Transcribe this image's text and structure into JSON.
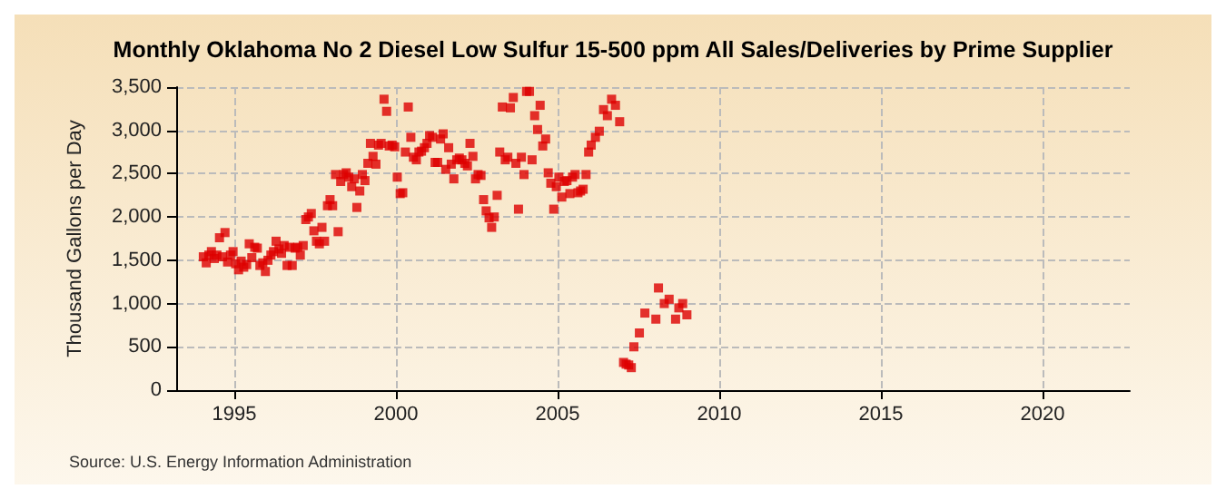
{
  "chart_data": {
    "type": "scatter",
    "title": "Monthly Oklahoma No 2 Diesel Low Sulfur 15-500 ppm All Sales/Deliveries by Prime Supplier",
    "ylabel": "Thousand Gallons per Day",
    "annotations": [
      "Source: U.S. Energy Information Administration"
    ],
    "xlim": [
      1993.2,
      2022.7
    ],
    "xticks": [
      {
        "value": 1995,
        "label": "1995"
      },
      {
        "value": 2000,
        "label": "2000"
      },
      {
        "value": 2005,
        "label": "2005"
      },
      {
        "value": 2010,
        "label": "2010"
      },
      {
        "value": 2015,
        "label": "2015"
      },
      {
        "value": 2020,
        "label": "2020"
      }
    ],
    "ylim": [
      0,
      3500
    ],
    "yticks": [
      0,
      500,
      {
        "value": 1000,
        "label": "1,000"
      },
      {
        "value": 1500,
        "label": "1,500"
      },
      {
        "value": 2000,
        "label": "2,000"
      },
      {
        "value": 2500,
        "label": "2,500"
      },
      {
        "value": 3000,
        "label": "3,000"
      },
      {
        "value": 3500,
        "label": "3,500"
      }
    ],
    "grid": true,
    "marker": "square",
    "series": [
      {
        "color": "#dd0000",
        "x": [
          1994.04,
          1994.13,
          1994.21,
          1994.29,
          1994.38,
          1994.46,
          1994.54,
          1994.63,
          1994.71,
          1994.79,
          1994.88,
          1994.96,
          1995.04,
          1995.13,
          1995.21,
          1995.29,
          1995.38,
          1995.46,
          1995.54,
          1995.63,
          1995.71,
          1995.79,
          1995.88,
          1995.96,
          1996.04,
          1996.13,
          1996.21,
          1996.29,
          1996.38,
          1996.46,
          1996.54,
          1996.63,
          1996.71,
          1996.79,
          1996.88,
          1996.96,
          1997.04,
          1997.13,
          1997.21,
          1997.29,
          1997.38,
          1997.46,
          1997.54,
          1997.63,
          1997.71,
          1997.79,
          1997.88,
          1997.96,
          1998.04,
          1998.13,
          1998.21,
          1998.29,
          1998.38,
          1998.46,
          1998.54,
          1998.63,
          1998.71,
          1998.79,
          1998.88,
          1998.96,
          1999.04,
          1999.13,
          1999.21,
          1999.29,
          1999.38,
          1999.46,
          1999.54,
          1999.63,
          1999.71,
          1999.79,
          1999.88,
          1999.96,
          2000.04,
          2000.13,
          2000.21,
          2000.29,
          2000.38,
          2000.46,
          2000.54,
          2000.63,
          2000.71,
          2000.79,
          2000.88,
          2000.96,
          2001.04,
          2001.13,
          2001.21,
          2001.29,
          2001.38,
          2001.46,
          2001.54,
          2001.63,
          2001.71,
          2001.79,
          2001.88,
          2001.96,
          2002.04,
          2002.13,
          2002.21,
          2002.29,
          2002.38,
          2002.46,
          2002.54,
          2002.63,
          2002.71,
          2002.79,
          2002.88,
          2002.96,
          2003.04,
          2003.13,
          2003.21,
          2003.29,
          2003.38,
          2003.46,
          2003.54,
          2003.63,
          2003.71,
          2003.79,
          2003.88,
          2003.96,
          2004.04,
          2004.13,
          2004.21,
          2004.29,
          2004.38,
          2004.46,
          2004.54,
          2004.63,
          2004.71,
          2004.79,
          2004.88,
          2004.96,
          2005.04,
          2005.13,
          2005.21,
          2005.29,
          2005.38,
          2005.46,
          2005.54,
          2005.63,
          2005.71,
          2005.79,
          2005.88,
          2005.96,
          2006.04,
          2006.17,
          2006.29,
          2006.42,
          2006.54,
          2006.67,
          2006.79,
          2006.92,
          2007.04,
          2007.12,
          2007.2,
          2007.28,
          2007.36,
          2007.53,
          2007.7,
          2008.04,
          2008.12,
          2008.3,
          2008.45,
          2008.65,
          2008.75,
          2008.87,
          2009.0
        ],
        "values": [
          1540,
          1470,
          1560,
          1600,
          1520,
          1560,
          1760,
          1540,
          1820,
          1480,
          1560,
          1600,
          1460,
          1390,
          1490,
          1420,
          1450,
          1690,
          1530,
          1650,
          1640,
          1440,
          1470,
          1370,
          1500,
          1560,
          1600,
          1720,
          1630,
          1580,
          1670,
          1440,
          1650,
          1440,
          1640,
          1650,
          1560,
          1670,
          1970,
          2000,
          2040,
          1840,
          1720,
          1690,
          1880,
          1720,
          2130,
          2200,
          2130,
          2490,
          1830,
          2410,
          2490,
          2510,
          2460,
          2350,
          2440,
          2110,
          2300,
          2490,
          2420,
          2620,
          2850,
          2700,
          2610,
          2830,
          2850,
          3360,
          3220,
          2820,
          2830,
          2810,
          2460,
          2270,
          2280,
          2750,
          3270,
          2920,
          2690,
          2660,
          2750,
          2760,
          2800,
          2850,
          2940,
          2920,
          2630,
          2630,
          2900,
          2960,
          2550,
          2800,
          2610,
          2440,
          2660,
          2680,
          2660,
          2620,
          2590,
          2850,
          2700,
          2440,
          2490,
          2480,
          2200,
          2070,
          1990,
          1880,
          2000,
          2250,
          2750,
          3270,
          2660,
          2690,
          3260,
          3380,
          2620,
          2090,
          2690,
          2490,
          3450,
          3450,
          2660,
          3170,
          3010,
          3290,
          2820,
          2900,
          2510,
          2390,
          2090,
          2350,
          2460,
          2230,
          2410,
          2420,
          2270,
          2460,
          2490,
          2280,
          2300,
          2320,
          2490,
          2750,
          2830,
          2920,
          2990,
          3240,
          3170,
          3360,
          3290,
          3100,
          320,
          300,
          290,
          260,
          500,
          660,
          890,
          820,
          1180,
          1000,
          1050,
          820,
          950,
          1000,
          870
        ]
      }
    ]
  }
}
